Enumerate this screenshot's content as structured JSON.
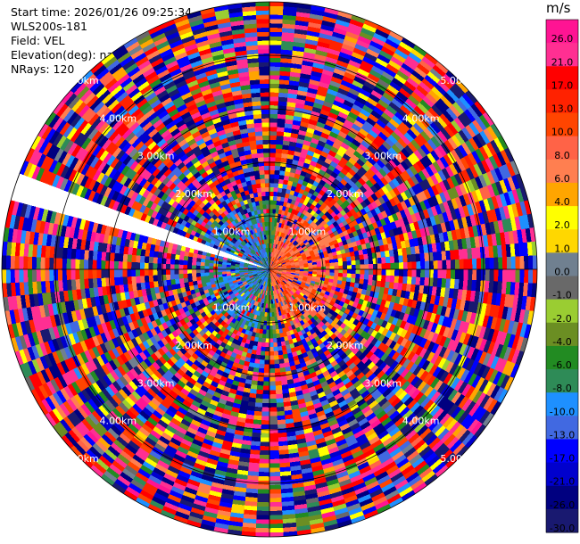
{
  "header": {
    "start_time": "Start time: 2026/01/26 09:25:34",
    "instrument": "WLS200s-181",
    "field": "Field: VEL",
    "elevation": "Elevation(deg): nan",
    "nrays": "NRays: 120"
  },
  "chart_data": {
    "type": "heatmap",
    "projection": "polar-ppi",
    "field": "VEL",
    "units": "m/s",
    "n_rays": 120,
    "max_range_km": 5.0,
    "range_rings_km": [
      1.0,
      2.0,
      3.0,
      4.0,
      5.0
    ],
    "ring_labels": [
      "1.00km",
      "2.00km",
      "3.00km",
      "4.00km",
      "5.00km"
    ],
    "missing_sector_deg": [
      284,
      292
    ],
    "near_field_pattern": {
      "radius_km": 1.3,
      "west_sector_velocity": -9.0,
      "east_sector_velocity": 9.0,
      "north_south_velocity": -5.0
    },
    "far_field": "noise (random velocities across full scale)",
    "colorbar": {
      "unit": "m/s",
      "levels": [
        26.0,
        21.0,
        17.0,
        13.0,
        10.0,
        8.0,
        6.0,
        4.0,
        2.0,
        1.0,
        0.0,
        -1.0,
        -2.0,
        -4.0,
        -6.0,
        -8.0,
        -10.0,
        -13.0,
        -17.0,
        -21.0,
        -26.0,
        -30.0
      ],
      "level_labels": [
        "26.0",
        "21.0",
        "17.0",
        "13.0",
        "10.0",
        "8.0",
        "6.0",
        "4.0",
        "2.0",
        "1.0",
        "0.0",
        "-1.0",
        "-2.0",
        "-4.0",
        "-6.0",
        "-8.0",
        "-10.0",
        "-13.0",
        "-17.0",
        "-21.0",
        "-26.0",
        "-30.0"
      ],
      "colors": [
        "#ff1493",
        "#ff2f92",
        "#ff0000",
        "#ff2200",
        "#ff4500",
        "#ff6347",
        "#ff7f50",
        "#ffa500",
        "#ffff00",
        "#ffd700",
        "#708090",
        "#696969",
        "#9acd32",
        "#6b8e23",
        "#228b22",
        "#2e8b57",
        "#1e90ff",
        "#4169e1",
        "#0000ff",
        "#0000cd",
        "#000080",
        "#191970"
      ]
    }
  }
}
